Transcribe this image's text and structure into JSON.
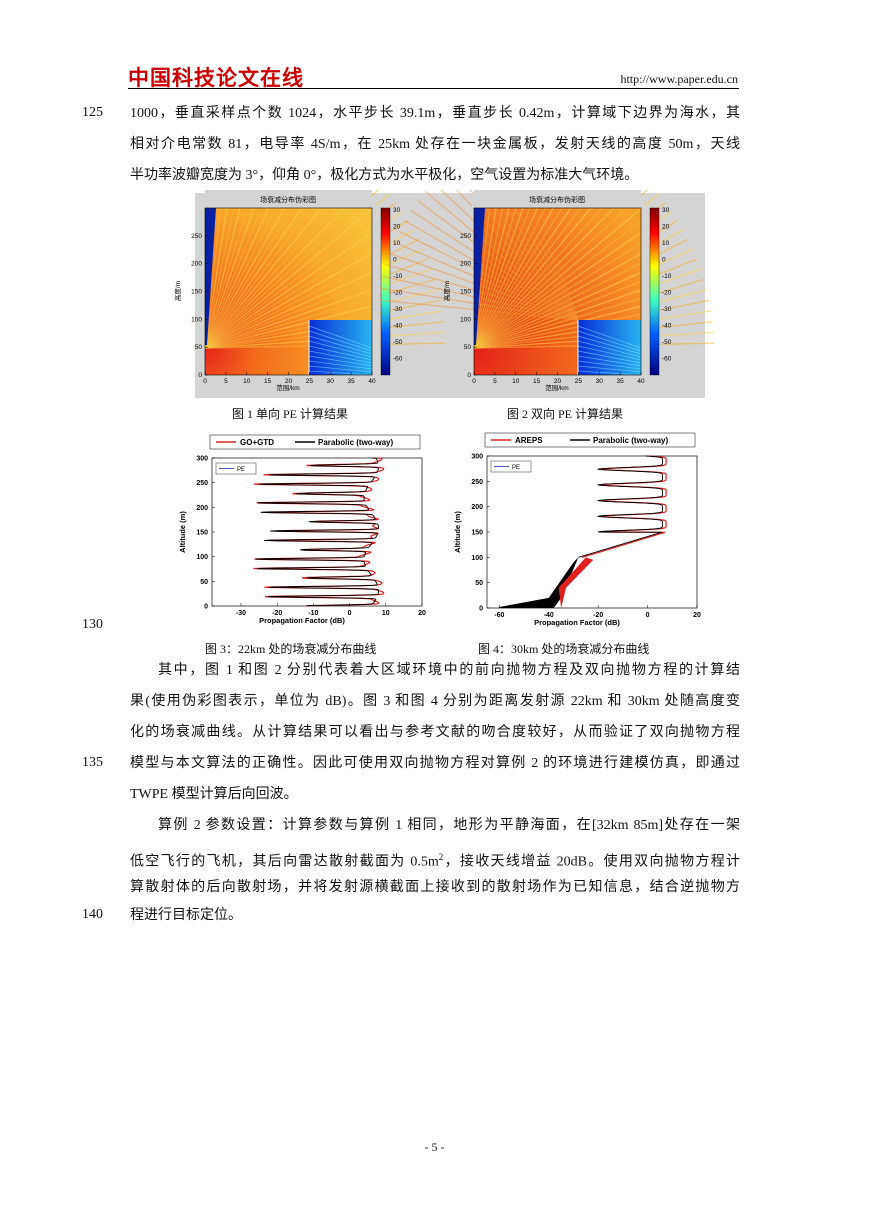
{
  "header": {
    "logo": "中国科技论文在线",
    "url": "http://www.paper.edu.cn"
  },
  "body_top": {
    "lines": [
      {
        "n": "125",
        "t": "1000，垂直采样点个数 1024，水平步长 39.1m，垂直步长 0.42m，计算域下边界为海水，其"
      },
      {
        "t": "相对介电常数 81，电导率 4S/m，在 25km 处存在一块金属板，发射天线的高度 50m，天线"
      },
      {
        "t": "半功率波瓣宽度为 3°，仰角 0°，极化方式为水平极化，空气设置为标准大气环境。"
      }
    ]
  },
  "figure1": {
    "title": "场衰减分布伪彩图",
    "xlabel": "范围/km",
    "ylabel": "高度/m",
    "xticks": [
      "0",
      "5",
      "10",
      "15",
      "20",
      "25",
      "30",
      "35",
      "40"
    ],
    "yticks": [
      "0",
      "50",
      "100",
      "150",
      "200",
      "250"
    ],
    "colorbar_ticks": [
      "30",
      "20",
      "10",
      "0",
      "-10",
      "-20",
      "-30",
      "-40",
      "-50",
      "-60"
    ],
    "caption": "图 1 单向 PE 计算结果"
  },
  "figure2": {
    "title": "场衰减分布伪彩图",
    "xlabel": "范围/km",
    "ylabel": "高度/m",
    "xticks": [
      "0",
      "5",
      "10",
      "15",
      "20",
      "25",
      "30",
      "35",
      "40"
    ],
    "yticks": [
      "0",
      "50",
      "100",
      "150",
      "200",
      "250"
    ],
    "colorbar_ticks": [
      "30",
      "20",
      "10",
      "0",
      "-10",
      "-20",
      "-30",
      "-40",
      "-50",
      "-60"
    ],
    "caption": "图 2 双向 PE 计算结果"
  },
  "figure3": {
    "legend": [
      "GO+GTD",
      "Parabolic (two-way)"
    ],
    "inner_legend": "PE",
    "ylabel": "Altitude (m)",
    "xlabel": "Propagation Factor (dB)",
    "xticks": [
      "-30",
      "-20",
      "-10",
      "0",
      "10",
      "20"
    ],
    "yticks": [
      "0",
      "50",
      "100",
      "150",
      "200",
      "250",
      "300"
    ],
    "caption": "图 3：22km 处的场衰减分布曲线"
  },
  "figure4": {
    "legend": [
      "AREPS",
      "Parabolic (two-way)"
    ],
    "inner_legend": "PE",
    "ylabel": "Altitude (m)",
    "xlabel": "Propagation Factor (dB)",
    "xticks": [
      "-60",
      "-40",
      "-20",
      "0",
      "20"
    ],
    "yticks": [
      "0",
      "50",
      "100",
      "150",
      "200",
      "250",
      "300"
    ],
    "caption": "图 4：30km 处的场衰减分布曲线"
  },
  "figure_line_number": "130",
  "paragraphs": [
    {
      "lines": [
        {
          "t": "其中，图 1 和图 2 分别代表着大区域环境中的前向抛物方程及双向抛物方程的计算结"
        },
        {
          "t": "果(使用伪彩图表示，单位为 dB)。图 3 和图 4 分别为距离发射源 22km 和 30km 处随高度变"
        },
        {
          "t": "化的场衰减曲线。从计算结果可以看出与参考文献的吻合度较好，从而验证了双向抛物方程"
        },
        {
          "n": "135",
          "t": "模型与本文算法的正确性。因此可使用双向抛物方程对算例 2 的环境进行建模仿真，即通过"
        },
        {
          "t": "TWPE 模型计算后向回波。"
        }
      ]
    },
    {
      "lines": [
        {
          "t": "算例 2 参数设置：计算参数与算例 1 相同，地形为平静海面，在[32km 85m]处存在一架"
        },
        {
          "t": "低空飞行的飞机，其后向雷达散射截面为 0.5m",
          "sup": "2",
          "t2": "，接收天线增益 20dB。使用双向抛物方程计"
        },
        {
          "t": "算散射体的后向散射场，并将发射源横截面上接收到的散射场作为已知信息，结合逆抛物方"
        },
        {
          "n": "140",
          "t": "程进行目标定位。"
        }
      ]
    }
  ],
  "footer": "- 5 -"
}
